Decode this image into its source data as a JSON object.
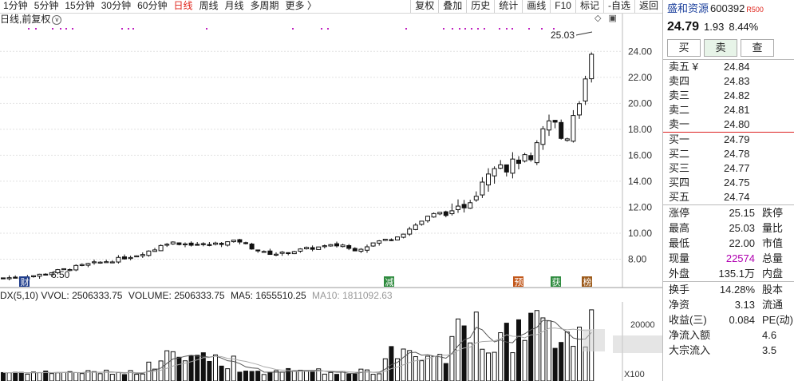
{
  "toolbar": {
    "periods": [
      "1分钟",
      "5分钟",
      "15分钟",
      "30分钟",
      "60分钟",
      "日线",
      "周线",
      "月线",
      "多周期",
      "更多 〉"
    ],
    "active_period": "日线",
    "right_buttons": [
      "复权",
      "叠加",
      "历史",
      "统计",
      "画线",
      "F10",
      "标记",
      "-自选",
      "返回"
    ]
  },
  "chart": {
    "label": "日线,前复权",
    "label_icon": "v",
    "high_label": "25.03",
    "low_label": "6.50",
    "tool_icons": [
      "◇",
      "▣"
    ],
    "y_ticks": [
      "24.00",
      "22.00",
      "20.00",
      "18.00",
      "16.00",
      "14.00",
      "12.00",
      "10.00",
      "8.00"
    ],
    "markers": [
      {
        "text": "财",
        "color": "#1f3d8c",
        "day": 9
      },
      {
        "text": "减",
        "color": "#2e8b3e",
        "day": 182
      },
      {
        "text": "预",
        "color": "#c2571a",
        "day": 245
      },
      {
        "text": "获",
        "color": "#2e8b3e",
        "day": 264
      },
      {
        "text": "榜",
        "color": "#9c5a1a",
        "day": 277
      }
    ]
  },
  "volume": {
    "legend_prefix": "DX(5,10)",
    "vvol_label": "VVOL:",
    "vvol_value": "2506333.75",
    "volume_label": "VOLUME:",
    "volume_value": "2506333.75",
    "ma5_label": "MA5:",
    "ma5_value": "1655510.25",
    "ma10_label": "MA10:",
    "ma10_value": "1811092.63",
    "axis_label": "20000",
    "unit_label": "X100"
  },
  "quote": {
    "name": "盛和资源",
    "code": "600392",
    "badge": "R",
    "badge_num": "500",
    "price": "24.79",
    "change": "1.93",
    "change_pct": "8.44%",
    "buttons": [
      "买",
      "卖",
      "查"
    ],
    "asks": [
      {
        "label": "卖五 ¥",
        "price": "24.84"
      },
      {
        "label": "卖四",
        "price": "24.83"
      },
      {
        "label": "卖三",
        "price": "24.82"
      },
      {
        "label": "卖二",
        "price": "24.81"
      },
      {
        "label": "卖一",
        "price": "24.80"
      }
    ],
    "bids": [
      {
        "label": "买一",
        "price": "24.79"
      },
      {
        "label": "买二",
        "price": "24.78"
      },
      {
        "label": "买三",
        "price": "24.77"
      },
      {
        "label": "买四",
        "price": "24.75"
      },
      {
        "label": "买五",
        "price": "24.74"
      }
    ],
    "stats_a": [
      {
        "label": "涨停",
        "value": "25.15",
        "label2": "跌停"
      },
      {
        "label": "最高",
        "value": "25.03",
        "label2": "量比"
      },
      {
        "label": "最低",
        "value": "22.00",
        "label2": "市值"
      },
      {
        "label": "现量",
        "value": "22574",
        "label2": "总量"
      },
      {
        "label": "外盘",
        "value": "135.1万",
        "label2": "内盘"
      }
    ],
    "stats_b": [
      {
        "label": "换手",
        "value": "14.28%",
        "label2": "股本"
      },
      {
        "label": "净资",
        "value": "3.13",
        "label2": "流通"
      },
      {
        "label": "收益(三)",
        "value": "0.084",
        "label2": "PE(动)"
      },
      {
        "label": "净流入额",
        "value": "",
        "label2": "4.6"
      },
      {
        "label": "大宗流入",
        "value": "",
        "label2": "3.5"
      }
    ]
  }
}
